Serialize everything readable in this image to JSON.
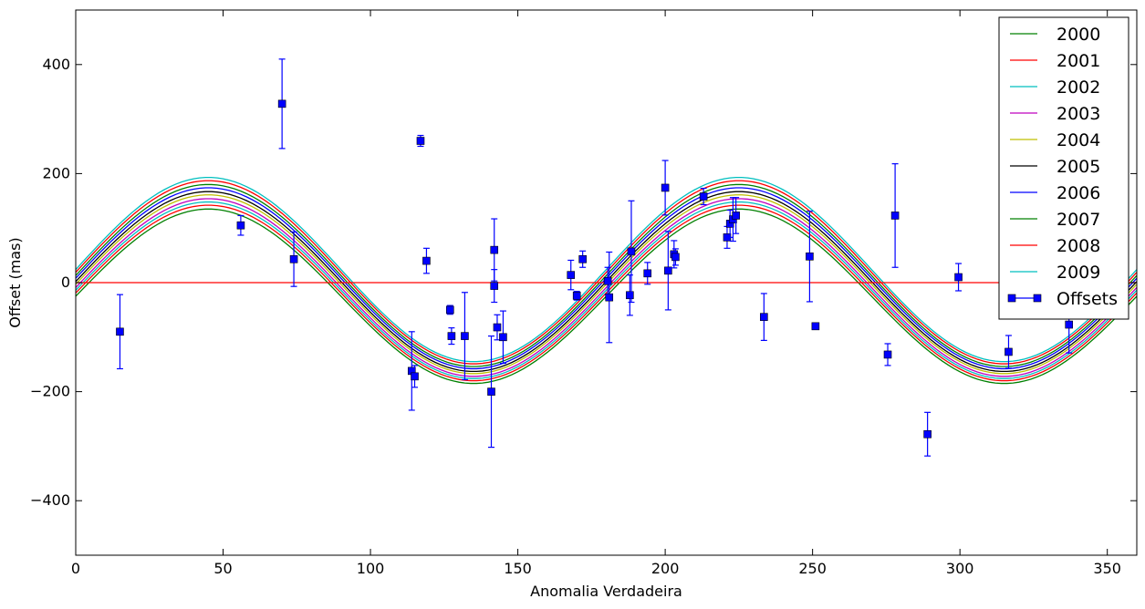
{
  "chart_data": {
    "type": "line",
    "title": "",
    "xlabel": "Anomalia Verdadeira",
    "ylabel": "Offset (mas)",
    "xlim": [
      0,
      360
    ],
    "ylim": [
      -500,
      500
    ],
    "xticks": [
      0,
      50,
      100,
      150,
      200,
      250,
      300,
      350
    ],
    "yticks": [
      -400,
      -200,
      0,
      200,
      400
    ],
    "grid": false,
    "legend": "top-right",
    "curves": {
      "function": "sine",
      "period_deg": 180,
      "phase_peak_deg": 45,
      "samples_step_deg": 2
    },
    "series": [
      {
        "name": "2000",
        "color": "#008000",
        "amplitude": 160,
        "offset": -25
      },
      {
        "name": "2001",
        "color": "#ff0000",
        "amplitude": 161,
        "offset": -19
      },
      {
        "name": "2002",
        "color": "#00bfbf",
        "amplitude": 162,
        "offset": -14
      },
      {
        "name": "2003",
        "color": "#bf00bf",
        "amplitude": 163,
        "offset": -9
      },
      {
        "name": "2004",
        "color": "#bfbf00",
        "amplitude": 164,
        "offset": -3
      },
      {
        "name": "2005",
        "color": "#000000",
        "amplitude": 165,
        "offset": 2
      },
      {
        "name": "2006",
        "color": "#0000ff",
        "amplitude": 166,
        "offset": 8
      },
      {
        "name": "2007",
        "color": "#008000",
        "amplitude": 167,
        "offset": 13
      },
      {
        "name": "2008",
        "color": "#ff0000",
        "amplitude": 168,
        "offset": 19
      },
      {
        "name": "2009",
        "color": "#00bfbf",
        "amplitude": 169,
        "offset": 24
      }
    ],
    "reference_line": {
      "y": 0,
      "color": "#ff0000"
    },
    "offsets": {
      "name": "Offsets",
      "color": "#0000ff",
      "points": [
        {
          "x": 15,
          "y": -90,
          "err": 68
        },
        {
          "x": 56,
          "y": 105,
          "err": 18
        },
        {
          "x": 70,
          "y": 328,
          "err": 82
        },
        {
          "x": 74,
          "y": 43,
          "err": 50
        },
        {
          "x": 114,
          "y": -162,
          "err": 72
        },
        {
          "x": 115,
          "y": -172,
          "err": 20
        },
        {
          "x": 117,
          "y": 260,
          "err": 10
        },
        {
          "x": 119,
          "y": 40,
          "err": 23
        },
        {
          "x": 127,
          "y": -50,
          "err": 8
        },
        {
          "x": 127.5,
          "y": -98,
          "err": 15
        },
        {
          "x": 132,
          "y": -98,
          "err": 80
        },
        {
          "x": 141,
          "y": -200,
          "err": 102
        },
        {
          "x": 142,
          "y": 60,
          "err": 57
        },
        {
          "x": 142,
          "y": -6,
          "err": 30
        },
        {
          "x": 143,
          "y": -82,
          "err": 23
        },
        {
          "x": 145,
          "y": -100,
          "err": 48
        },
        {
          "x": 168,
          "y": 14,
          "err": 27
        },
        {
          "x": 170,
          "y": -24,
          "err": 8
        },
        {
          "x": 172,
          "y": 43,
          "err": 15
        },
        {
          "x": 180.5,
          "y": 3,
          "err": 25
        },
        {
          "x": 181,
          "y": -27,
          "err": 83
        },
        {
          "x": 188,
          "y": -23,
          "err": 37
        },
        {
          "x": 188.5,
          "y": 57,
          "err": 93
        },
        {
          "x": 194,
          "y": 17,
          "err": 20
        },
        {
          "x": 200,
          "y": 174,
          "err": 50
        },
        {
          "x": 201,
          "y": 22,
          "err": 72
        },
        {
          "x": 203,
          "y": 52,
          "err": 25
        },
        {
          "x": 203.5,
          "y": 47,
          "err": 15
        },
        {
          "x": 213,
          "y": 158,
          "err": 15
        },
        {
          "x": 221,
          "y": 83,
          "err": 20
        },
        {
          "x": 222,
          "y": 108,
          "err": 25
        },
        {
          "x": 223,
          "y": 116,
          "err": 40
        },
        {
          "x": 224,
          "y": 123,
          "err": 33
        },
        {
          "x": 233.5,
          "y": -63,
          "err": 43
        },
        {
          "x": 249,
          "y": 48,
          "err": 83
        },
        {
          "x": 251,
          "y": -80,
          "err": 5
        },
        {
          "x": 275.5,
          "y": -132,
          "err": 20
        },
        {
          "x": 278,
          "y": 123,
          "err": 95
        },
        {
          "x": 289,
          "y": -278,
          "err": 40
        },
        {
          "x": 299.5,
          "y": 10,
          "err": 25
        },
        {
          "x": 316.5,
          "y": -127,
          "err": 30
        },
        {
          "x": 333,
          "y": -58,
          "err": 8
        },
        {
          "x": 337,
          "y": -77,
          "err": 52
        }
      ]
    }
  }
}
